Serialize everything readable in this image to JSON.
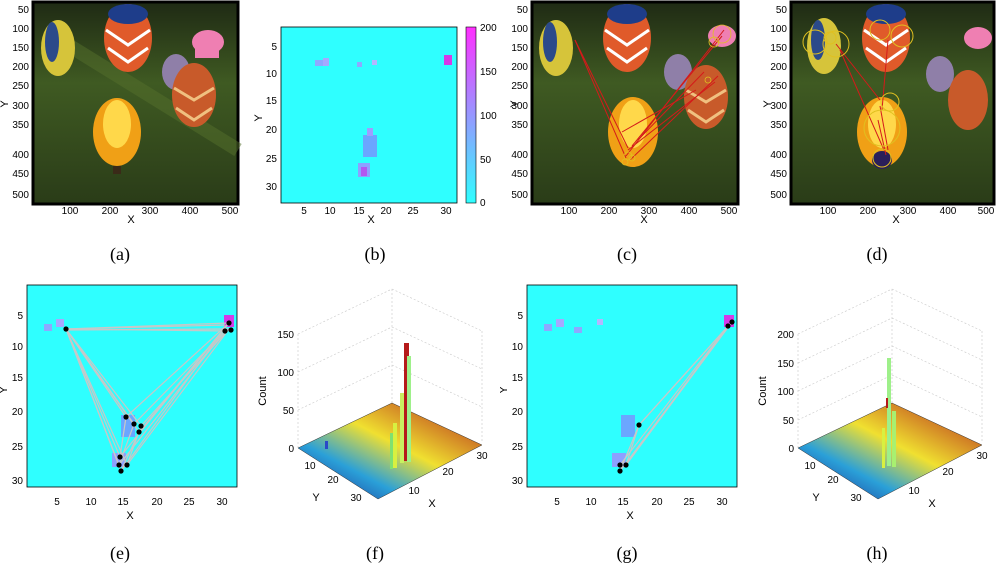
{
  "figure": {
    "captions": [
      "(a)",
      "(b)",
      "(c)",
      "(d)",
      "(e)",
      "(f)",
      "(g)",
      "(h)"
    ],
    "panels": [
      {
        "id": "a",
        "type": "image",
        "xlabel": "X",
        "ylabel": "Y",
        "xticks": [
          "100",
          "200",
          "300",
          "400",
          "500"
        ],
        "yticks": [
          "50",
          "100",
          "150",
          "200",
          "250",
          "300",
          "350",
          "400",
          "450",
          "500"
        ]
      },
      {
        "id": "b",
        "type": "heatmap",
        "xlabel": "X",
        "ylabel": "Y",
        "xticks": [
          "5",
          "10",
          "15",
          "20",
          "25",
          "30"
        ],
        "yticks": [
          "5",
          "10",
          "15",
          "20",
          "25",
          "30"
        ],
        "colorbar_ticks": [
          "200",
          "150",
          "100",
          "50",
          "0"
        ],
        "colorbar_colors": [
          "#ff2fff",
          "#2fffff"
        ]
      },
      {
        "id": "c",
        "type": "image",
        "xlabel": "X",
        "ylabel": "Y",
        "xticks": [
          "100",
          "200",
          "300",
          "400",
          "500"
        ],
        "yticks": [
          "50",
          "100",
          "150",
          "200",
          "250",
          "300",
          "350",
          "400",
          "450",
          "500"
        ]
      },
      {
        "id": "d",
        "type": "image",
        "xlabel": "X",
        "ylabel": "Y",
        "xticks": [
          "100",
          "200",
          "300",
          "400",
          "500"
        ],
        "yticks": [
          "50",
          "100",
          "150",
          "200",
          "250",
          "300",
          "350",
          "400",
          "450",
          "500"
        ]
      },
      {
        "id": "e",
        "type": "heatmap-graph",
        "xlabel": "X",
        "ylabel": "Y",
        "xticks": [
          "5",
          "10",
          "15",
          "20",
          "25",
          "30"
        ],
        "yticks": [
          "5",
          "10",
          "15",
          "20",
          "25",
          "30"
        ]
      },
      {
        "id": "f",
        "type": "bar3d",
        "xlabel": "X",
        "ylabel": "Y",
        "zlabel": "Count",
        "xticks": [
          "10",
          "20",
          "30"
        ],
        "yticks": [
          "10",
          "20",
          "30"
        ],
        "zticks": [
          "150",
          "100",
          "50",
          "0"
        ]
      },
      {
        "id": "g",
        "type": "heatmap-graph",
        "xlabel": "X",
        "ylabel": "Y",
        "xticks": [
          "5",
          "10",
          "15",
          "20",
          "25",
          "30"
        ],
        "yticks": [
          "5",
          "10",
          "15",
          "20",
          "25",
          "30"
        ]
      },
      {
        "id": "h",
        "type": "bar3d",
        "xlabel": "X",
        "ylabel": "Y",
        "zlabel": "Count",
        "xticks": [
          "10",
          "20",
          "30"
        ],
        "yticks": [
          "10",
          "20",
          "30"
        ],
        "zticks": [
          "200",
          "150",
          "100",
          "50",
          "0"
        ]
      }
    ]
  }
}
